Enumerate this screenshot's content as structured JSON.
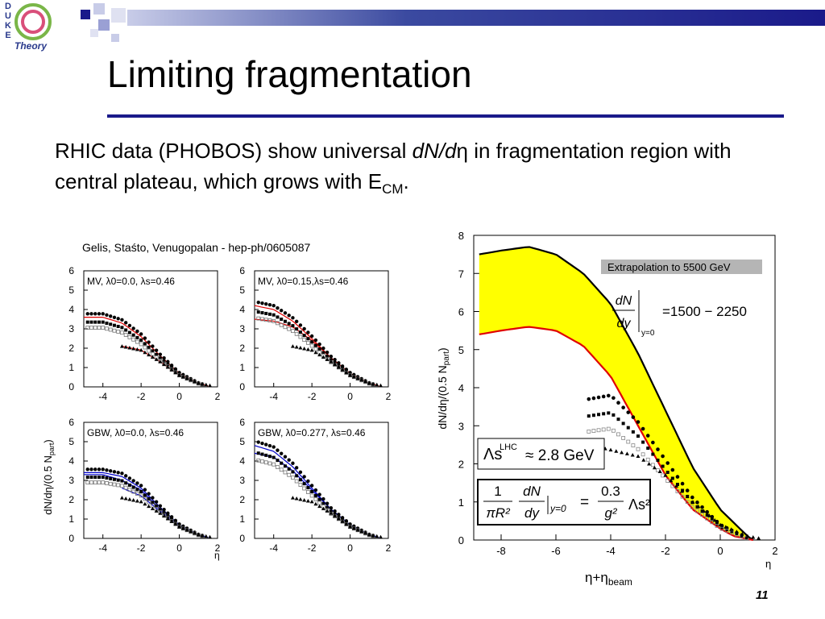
{
  "logo": {
    "letters": [
      "D",
      "U",
      "K",
      "E"
    ],
    "word": "Theory"
  },
  "title": "Limiting fragmentation",
  "subtitle": {
    "part1": "RHIC data (PHOBOS) show universal ",
    "emph": "dN/d",
    "eta": "η",
    "part2": " in fragmentation region with central plateau, which grows with E",
    "sub": "CM",
    "end": "."
  },
  "credit": "Gelis, Staśto, Venugopalan - hep-ph/0605087",
  "page_number": "11",
  "small_panels": {
    "ylabel": "dN/dη/(0.5 N",
    "ylabel_sub": "part",
    "ylabel_end": ")",
    "xlabel": "η",
    "yticks": [
      "0",
      "1",
      "2",
      "3",
      "4",
      "5",
      "6"
    ],
    "xticks": [
      "-4",
      "-2",
      "0",
      "2"
    ],
    "labels": [
      "MV, λ0=0.0, λs=0.46",
      "MV, λ0=0.15,λs=0.46",
      "GBW, λ0=0.0, λs=0.46",
      "GBW, λ0=0.277, λs=0.46"
    ]
  },
  "big_panel": {
    "ylabel": "dN/dη/(0.5 N",
    "ylabel_sub": "part",
    "ylabel_end": ")",
    "xlabel": "η",
    "xlabel2": "η+η",
    "xlabel2_sub": "beam",
    "yticks": [
      "0",
      "1",
      "2",
      "3",
      "4",
      "5",
      "6",
      "7",
      "8"
    ],
    "xticks": [
      "-8",
      "-6",
      "-4",
      "-2",
      "0",
      "2"
    ],
    "annotation": "Extrapolation  to 5500 GeV",
    "formula1_lhs_num": "dN",
    "formula1_lhs_den": "dy",
    "formula1_sub": "y=0",
    "formula1_rhs": "=1500 − 2250",
    "formula2": "Λs",
    "formula2_sup": "LHC",
    "formula2_rhs": "≈ 2.8 GeV",
    "formula3_a": "1",
    "formula3_b": "πR²",
    "formula3_c": "dN",
    "formula3_d": "dy",
    "formula3_e": "y=0",
    "formula3_f": "0.3",
    "formula3_g": "g²",
    "formula3_h": "Λs²"
  },
  "colors": {
    "band": "#ffff00",
    "upper": "#000000",
    "lower": "#e00000",
    "model": "#0000c8",
    "navy": "#1a1a8a"
  },
  "chart_data": [
    {
      "type": "scatter",
      "title": "MV, λ0=0.0, λs=0.46",
      "xlabel": "η",
      "ylabel": "dN/dη/(0.5 Npart)",
      "xlim": [
        -5,
        2
      ],
      "ylim": [
        0,
        6
      ],
      "model": "red",
      "curves": [
        {
          "x": [
            -5,
            -4,
            -3,
            -2,
            -1,
            0,
            1,
            1.5
          ],
          "y": [
            3.6,
            3.6,
            3.3,
            2.6,
            1.6,
            0.7,
            0.2,
            0.05
          ]
        },
        {
          "x": [
            -3,
            -2,
            -1,
            0,
            1,
            1.5
          ],
          "y": [
            2.1,
            1.9,
            1.3,
            0.6,
            0.2,
            0.05
          ]
        }
      ]
    },
    {
      "type": "scatter",
      "title": "MV, λ0=0.15,λs=0.46",
      "xlabel": "η",
      "ylabel": "dN/dη/(0.5 Npart)",
      "xlim": [
        -5,
        2
      ],
      "ylim": [
        0,
        6
      ],
      "model": "red",
      "curves": [
        {
          "x": [
            -5,
            -4,
            -3,
            -2,
            -1,
            0,
            1,
            1.5
          ],
          "y": [
            4.2,
            4.0,
            3.4,
            2.5,
            1.5,
            0.7,
            0.2,
            0.05
          ]
        },
        {
          "x": [
            -5,
            -4,
            -3,
            -2,
            -1,
            0,
            1,
            1.5
          ],
          "y": [
            3.5,
            3.4,
            3.1,
            2.4,
            1.5,
            0.7,
            0.2,
            0.05
          ]
        }
      ]
    },
    {
      "type": "scatter",
      "title": "GBW, λ0=0.0, λs=0.46",
      "xlabel": "η",
      "ylabel": "dN/dη/(0.5 Npart)",
      "xlim": [
        -5,
        2
      ],
      "ylim": [
        0,
        6
      ],
      "model": "blue",
      "curves": [
        {
          "x": [
            -5,
            -4,
            -3,
            -2,
            -1,
            0,
            1,
            1.5
          ],
          "y": [
            3.4,
            3.4,
            3.2,
            2.6,
            1.6,
            0.7,
            0.2,
            0.05
          ]
        },
        {
          "x": [
            -5,
            -4,
            -3,
            -2,
            -1,
            0,
            1,
            1.5
          ],
          "y": [
            3.3,
            3.3,
            3.0,
            2.5,
            1.5,
            0.7,
            0.2,
            0.05
          ]
        },
        {
          "x": [
            -3,
            -2,
            -1,
            0,
            1,
            1.5
          ],
          "y": [
            2.6,
            2.2,
            1.4,
            0.6,
            0.2,
            0.05
          ]
        }
      ]
    },
    {
      "type": "scatter",
      "title": "GBW, λ0=0.277, λs=0.46",
      "xlabel": "η",
      "ylabel": "dN/dη/(0.5 Npart)",
      "xlim": [
        -5,
        2
      ],
      "ylim": [
        0,
        6
      ],
      "model": "blue",
      "curves": [
        {
          "x": [
            -5,
            -4,
            -3,
            -2,
            -1,
            0,
            1,
            1.5
          ],
          "y": [
            4.8,
            4.5,
            3.7,
            2.6,
            1.5,
            0.7,
            0.2,
            0.05
          ]
        },
        {
          "x": [
            -5,
            -4,
            -3,
            -2,
            -1,
            0,
            1,
            1.5
          ],
          "y": [
            4.4,
            4.2,
            3.5,
            2.5,
            1.5,
            0.7,
            0.2,
            0.05
          ]
        }
      ]
    },
    {
      "type": "area",
      "title": "Extrapolation  to 5500 GeV",
      "xlabel": "η",
      "ylabel": "dN/dη/(0.5 Npart)",
      "xlim": [
        -9,
        2
      ],
      "ylim": [
        0,
        8
      ],
      "upper": {
        "x": [
          -8.8,
          -8,
          -7,
          -6,
          -5,
          -4,
          -3,
          -2,
          -1,
          0,
          1,
          1.2
        ],
        "y": [
          7.5,
          7.6,
          7.7,
          7.5,
          7.0,
          6.2,
          4.9,
          3.4,
          1.9,
          0.8,
          0.1,
          0.0
        ]
      },
      "lower": {
        "x": [
          -8.8,
          -8,
          -7,
          -6,
          -5,
          -4,
          -3,
          -2,
          -1,
          0,
          0.5,
          1.2
        ],
        "y": [
          5.4,
          5.5,
          5.6,
          5.5,
          5.1,
          4.3,
          3.0,
          1.7,
          0.8,
          0.3,
          0.1,
          0.0
        ]
      }
    }
  ]
}
